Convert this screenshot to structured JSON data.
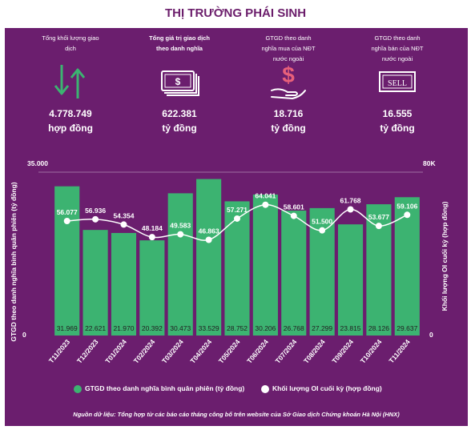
{
  "page": {
    "title": "THỊ TRƯỜNG PHÁI SINH"
  },
  "stats": [
    {
      "label": "Tổng khối lượng giao dịch",
      "value": "4.778.749",
      "unit": "hợp đồng",
      "icon": "up-down-arrows-icon"
    },
    {
      "label": "Tổng giá trị giao dịch theo danh nghĩa",
      "value": "622.381",
      "unit": "tỷ đồng",
      "icon": "banknote-icon"
    },
    {
      "label": "GTGD theo danh nghĩa mua của NĐT nước ngoài",
      "value": "18.716",
      "unit": "tỷ đồng",
      "icon": "dollar-hand-icon"
    },
    {
      "label": "GTGD theo danh nghĩa bán của NĐT nước ngoài",
      "value": "16.555",
      "unit": "tỷ đồng",
      "icon": "sell-sign-icon"
    }
  ],
  "chart_data": {
    "type": "bar",
    "categories": [
      "T11/2023",
      "T12/2023",
      "T01/2024",
      "T02/2024",
      "T03/2024",
      "T04/2024",
      "T05/2024",
      "T06/2024",
      "T07/2024",
      "T08/2024",
      "T09/2024",
      "T10/2024",
      "T11/2024"
    ],
    "series": [
      {
        "name": "GTGD theo danh nghĩa bình quân phiên (tỷ đồng)",
        "type": "bar",
        "axis": "left",
        "values": [
          31969,
          22621,
          21970,
          20392,
          30473,
          33529,
          28752,
          30206,
          26768,
          27299,
          23815,
          28126,
          29637
        ],
        "labels": [
          "31.969",
          "22.621",
          "21.970",
          "20.392",
          "30.473",
          "33.529",
          "28.752",
          "30.206",
          "26.768",
          "27.299",
          "23.815",
          "28.126",
          "29.637"
        ]
      },
      {
        "name": "Khối lượng OI cuối kỳ (hợp đồng)",
        "type": "line",
        "axis": "right",
        "values": [
          56077,
          56936,
          54354,
          48184,
          49583,
          46863,
          57271,
          64041,
          58601,
          51500,
          61768,
          53677,
          59106
        ],
        "labels": [
          "56.077",
          "56.936",
          "54.354",
          "48.184",
          "49.583",
          "46.863",
          "57.271",
          "64.041",
          "58.601",
          "51.500",
          "61.768",
          "53.677",
          "59.106"
        ]
      }
    ],
    "ylabel": "GTGD theo danh nghĩa bình quân phiên (tỷ đồng)",
    "y2label": "Khối lượng OI cuối kỳ (hợp đồng)",
    "ylim": [
      0,
      35000
    ],
    "y2lim": [
      0,
      80000
    ],
    "ytick_labels": [
      "0",
      "35.000"
    ],
    "y2tick_labels": [
      "0",
      "80K"
    ],
    "colors": {
      "bar": "#3cb371",
      "line": "#ffffff",
      "background": "#6b1e6e",
      "title": "#6b1d6b"
    },
    "legend_position": "bottom"
  },
  "source": "Nguồn dữ liệu: Tổng hợp từ các báo cáo tháng công bố trên website của Sở Giao dịch Chứng khoán Hà Nội (HNX)"
}
